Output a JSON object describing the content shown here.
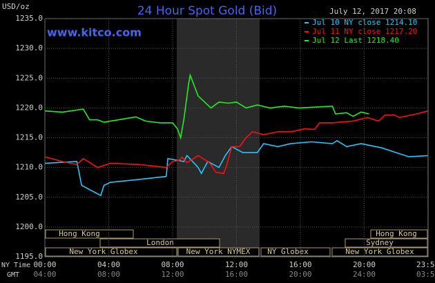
{
  "chart_data": {
    "type": "line",
    "title": "24 Hour Spot Gold (Bid)",
    "site": "www.kitco.com",
    "y_unit": "USD/oz",
    "timestamp": "July 12, 2017 20:08",
    "x_row_label": "NY Time",
    "x2_row_label": "GMT",
    "xlim": [
      0,
      24
    ],
    "xticks": [
      {
        "value": 0,
        "label": "00:00"
      },
      {
        "value": 4,
        "label": "04:00"
      },
      {
        "value": 8,
        "label": "08:00"
      },
      {
        "value": 12,
        "label": "12:00"
      },
      {
        "value": 16,
        "label": "16:00"
      },
      {
        "value": 20,
        "label": "20:00"
      },
      {
        "value": 23.98,
        "label": "23:59"
      }
    ],
    "x2ticks": [
      {
        "value": 0,
        "label": "04:00"
      },
      {
        "value": 4,
        "label": "08:00"
      },
      {
        "value": 8,
        "label": "12:00"
      },
      {
        "value": 12,
        "label": "16:00"
      },
      {
        "value": 16,
        "label": "20:00"
      },
      {
        "value": 20,
        "label": "24:00"
      },
      {
        "value": 23.98,
        "label": "03:59"
      }
    ],
    "ylim": [
      1195,
      1235
    ],
    "yticks": [
      {
        "value": 1195,
        "label": "1195.0"
      },
      {
        "value": 1200,
        "label": "1200.0"
      },
      {
        "value": 1205,
        "label": "1205.0"
      },
      {
        "value": 1210,
        "label": "1210.0"
      },
      {
        "value": 1215,
        "label": "1215.0"
      },
      {
        "value": 1220,
        "label": "1220.0"
      },
      {
        "value": 1225,
        "label": "1225.0"
      },
      {
        "value": 1230,
        "label": "1230.0"
      },
      {
        "value": 1235,
        "label": "1235.0"
      }
    ],
    "grid": true,
    "sessions": [
      "Hong Kong",
      "London",
      "New York Globex",
      "New York NYMEX",
      "NY Globex",
      "Hong Kong",
      "Sydney",
      "New York Globex"
    ],
    "series": [
      {
        "name": "Jul 10 NY close 1214.10",
        "color": "#22c8ff",
        "x": [
          0,
          2.0,
          2.3,
          3.5,
          3.7,
          4.1,
          5.9,
          7.6,
          7.7,
          8.7,
          8.9,
          9.6,
          9.8,
          10.2,
          10.9,
          11.3,
          11.7,
          12.4,
          13.3,
          13.7,
          14.6,
          15.4,
          16.7,
          18.0,
          18.3,
          18.9,
          19.8,
          21.1,
          22.0,
          22.8,
          23.98
        ],
        "values": [
          1210.7,
          1211,
          1207,
          1205.3,
          1207,
          1207.5,
          1208,
          1208.5,
          1211.5,
          1211,
          1212,
          1210,
          1209,
          1211,
          1210,
          1212,
          1213.5,
          1212.5,
          1212.5,
          1214,
          1213.5,
          1214,
          1214.3,
          1214,
          1214.5,
          1213.5,
          1214,
          1213.3,
          1212.5,
          1211.8,
          1212
        ]
      },
      {
        "name": "Jul 11 NY close 1217.20",
        "color": "#ff1010",
        "x": [
          0,
          1.1,
          2.0,
          2.4,
          3.3,
          4.1,
          5.9,
          7.6,
          8.0,
          8.4,
          8.6,
          8.9,
          9.6,
          10.2,
          10.4,
          10.7,
          11.2,
          11.4,
          11.7,
          12.2,
          12.6,
          13.0,
          13.7,
          14.6,
          15.4,
          16.3,
          16.9,
          17.2,
          18.0,
          19.3,
          20.2,
          20.9,
          21.3,
          21.9,
          22.2,
          23.3,
          23.98
        ],
        "values": [
          1211.8,
          1211,
          1210.5,
          1211.5,
          1210,
          1210.7,
          1210.5,
          1210,
          1211,
          1211.2,
          1211.7,
          1210.8,
          1212,
          1211,
          1210.5,
          1209.2,
          1209,
          1210.5,
          1213.5,
          1213.5,
          1215,
          1216,
          1215.5,
          1216,
          1216,
          1216.5,
          1216.4,
          1217.5,
          1217.5,
          1217.8,
          1218.4,
          1217.8,
          1218.8,
          1218.8,
          1218.4,
          1219,
          1219.5
        ]
      },
      {
        "name": "Jul 12 Last 1218.40",
        "color": "#22ee22",
        "x": [
          0,
          1.1,
          2.4,
          2.8,
          3.3,
          3.7,
          4.6,
          5.7,
          6.3,
          7.2,
          8.0,
          8.3,
          8.5,
          8.7,
          9.0,
          9.1,
          9.6,
          10.0,
          10.4,
          10.9,
          11.5,
          12.0,
          12.6,
          13.3,
          14.1,
          15.0,
          15.9,
          18.0,
          18.2,
          18.9,
          19.3,
          19.8,
          20.3
        ],
        "values": [
          1219.5,
          1219.3,
          1219.8,
          1218,
          1218,
          1217.6,
          1218,
          1218.5,
          1217.8,
          1217.5,
          1217.5,
          1216.5,
          1215,
          1218,
          1224,
          1225.5,
          1222,
          1221,
          1220,
          1221,
          1220.8,
          1221,
          1220,
          1220.5,
          1220,
          1220.3,
          1220,
          1220.3,
          1219,
          1219.2,
          1218.6,
          1219.3,
          1219
        ]
      }
    ]
  }
}
